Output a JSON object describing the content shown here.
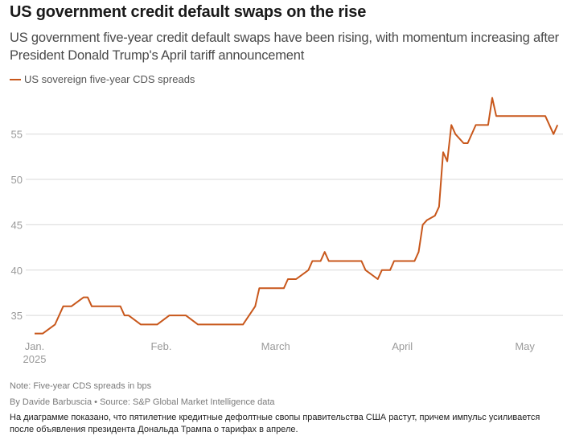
{
  "header": {
    "title": "US government credit default swaps on the rise",
    "subtitle": "US government five-year credit default swaps have been rising, with momentum increasing after President Donald Trump's April tariff announcement"
  },
  "footer": {
    "note": "Note: Five-year CDS spreads in bps",
    "byline": "By Davide Barbuscia • Source: S&P Global Market Intelligence data",
    "caption": "На диаграмме показано, что пятилетние кредитные дефолтные свопы правительства США растут, причем импульс усиливается после объявления президента Дональда Трампа о тарифах в апреле."
  },
  "colors": {
    "series": "#c8571b",
    "grid": "#d9d9d9"
  },
  "chart_data": {
    "type": "line",
    "title": "US government credit default swaps on the rise",
    "subtitle": "US government five-year credit default swaps have been rising, with momentum increasing after President Donald Trump's April tariff announcement",
    "xlabel": "",
    "ylabel": "",
    "x_unit": "day of year 2025 (Jan 1 = 0)",
    "xlim": [
      0,
      130
    ],
    "ylim": [
      32,
      60
    ],
    "yticks": [
      35,
      40,
      45,
      50,
      55
    ],
    "xticks": [
      {
        "x": 0,
        "label": "Jan.",
        "sublabel": "2025"
      },
      {
        "x": 31,
        "label": "Feb.",
        "sublabel": ""
      },
      {
        "x": 59,
        "label": "March",
        "sublabel": ""
      },
      {
        "x": 90,
        "label": "April",
        "sublabel": ""
      },
      {
        "x": 120,
        "label": "May",
        "sublabel": ""
      }
    ],
    "grid": true,
    "legend_position": "top-left",
    "series": [
      {
        "name": "US sovereign five-year CDS spreads",
        "x": [
          0,
          2,
          5,
          7,
          9,
          12,
          13,
          14,
          21,
          22,
          23,
          26,
          30,
          33,
          37,
          40,
          51,
          54,
          55,
          61,
          62,
          63,
          64,
          67,
          68,
          70,
          71,
          72,
          73,
          74,
          80,
          81,
          84,
          85,
          87,
          88,
          93,
          94,
          95,
          96,
          98,
          99,
          100,
          101,
          102,
          103,
          105,
          106,
          108,
          111,
          112,
          113,
          114,
          125,
          127,
          128
        ],
        "values": [
          33,
          33,
          34,
          36,
          36,
          37,
          37,
          36,
          36,
          35,
          35,
          34,
          34,
          35,
          35,
          34,
          34,
          36,
          38,
          38,
          39,
          39,
          39,
          40,
          41,
          41,
          42,
          41,
          41,
          41,
          41,
          40,
          39,
          40,
          40,
          41,
          41,
          42,
          45,
          45.5,
          46,
          47,
          53,
          52,
          56,
          55,
          54,
          54,
          56,
          56,
          59,
          57,
          57,
          57,
          55,
          56
        ]
      }
    ]
  }
}
